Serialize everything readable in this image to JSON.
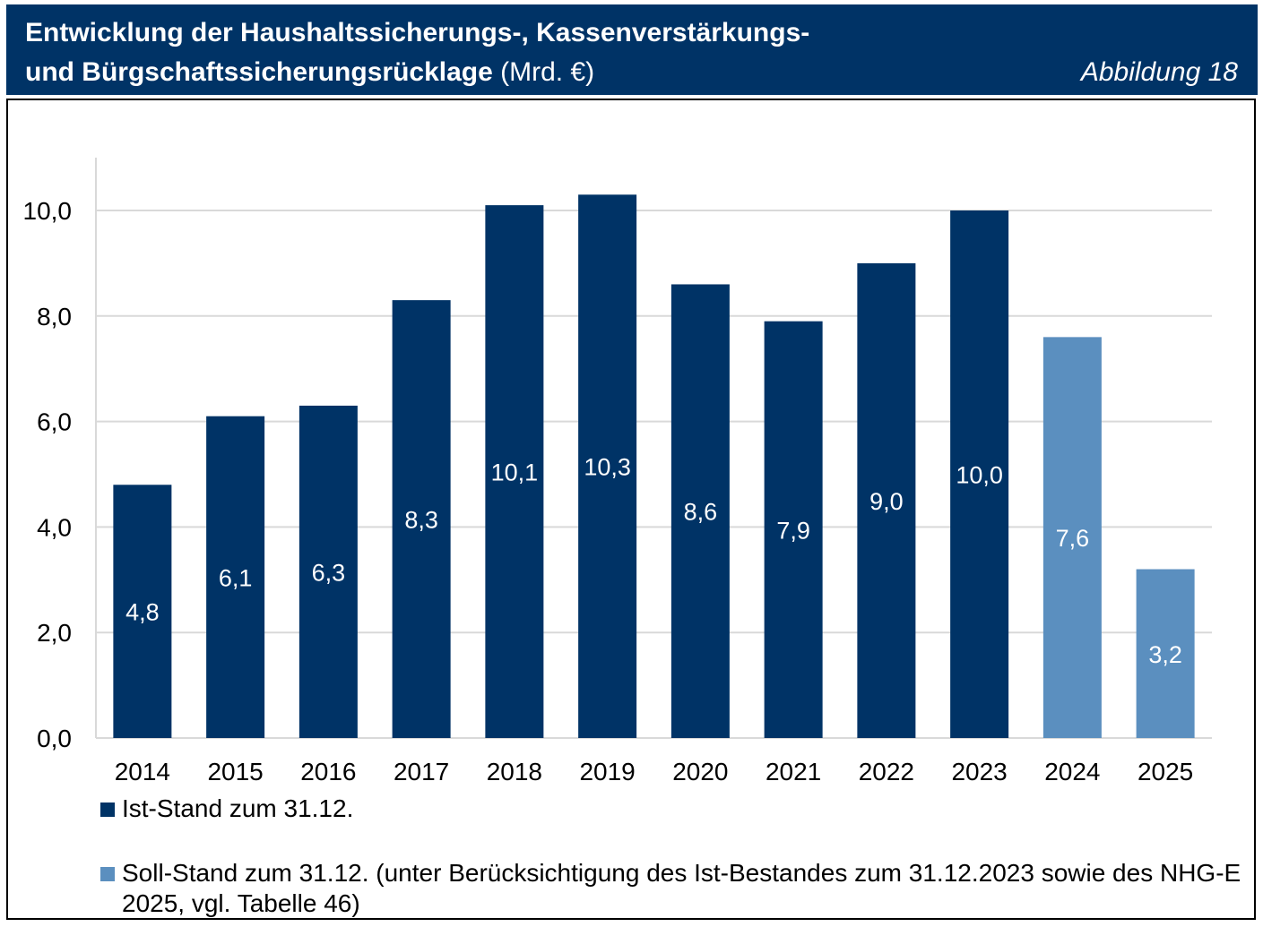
{
  "header": {
    "title_line1": "Entwicklung der Haushaltssicherungs-, Kassenverstärkungs-",
    "title_line2_bold": "und Bürgschaftssicherungsrücklage",
    "title_line2_unit": " (Mrd. €)",
    "figure_label": "Abbildung 18"
  },
  "colors": {
    "header_bg": "#003366",
    "ist": "#003366",
    "soll": "#5b8fbf",
    "grid": "#d9d9d9"
  },
  "chart_data": {
    "type": "bar",
    "categories": [
      "2014",
      "2015",
      "2016",
      "2017",
      "2018",
      "2019",
      "2020",
      "2021",
      "2022",
      "2023",
      "2024",
      "2025"
    ],
    "values": [
      4.8,
      6.1,
      6.3,
      8.3,
      10.1,
      10.3,
      8.6,
      7.9,
      9.0,
      10.0,
      7.6,
      3.2
    ],
    "value_labels": [
      "4,8",
      "6,1",
      "6,3",
      "8,3",
      "10,1",
      "10,3",
      "8,6",
      "7,9",
      "9,0",
      "10,0",
      "7,6",
      "3,2"
    ],
    "series_index": [
      0,
      0,
      0,
      0,
      0,
      0,
      0,
      0,
      0,
      0,
      1,
      1
    ],
    "series": [
      {
        "name": "Ist-Stand zum 31.12.",
        "color": "#003366"
      },
      {
        "name": "Soll-Stand zum 31.12. (unter Berücksichtigung des Ist-Bestandes zum 31.12.2023 sowie des NHG-E 2025, vgl. Tabelle 46)",
        "color": "#5b8fbf"
      }
    ],
    "y_ticks": [
      "0,0",
      "2,0",
      "4,0",
      "6,0",
      "8,0",
      "10,0"
    ],
    "ylim": [
      0,
      11
    ],
    "grid": true,
    "legend_position": "bottom-left"
  }
}
